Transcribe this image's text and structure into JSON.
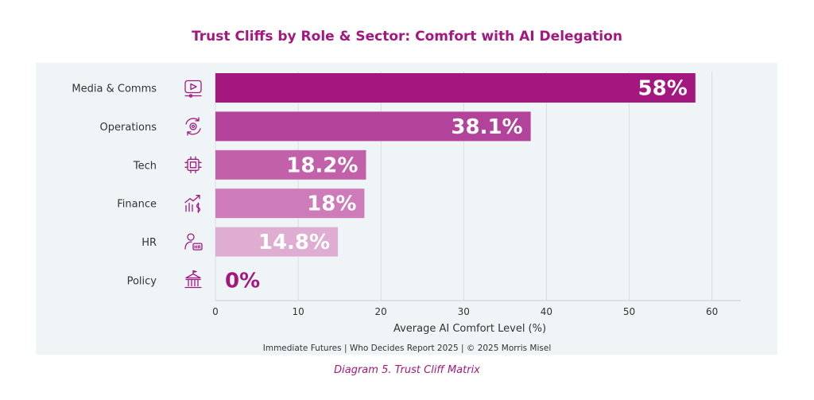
{
  "chart_data": {
    "type": "bar",
    "orientation": "horizontal",
    "title": "Trust Cliffs by Role & Sector: Comfort with AI Delegation",
    "xlabel": "Average AI Comfort Level (%)",
    "ylabel": "",
    "xlim": [
      0,
      63
    ],
    "xticks": [
      0,
      10,
      20,
      30,
      40,
      50,
      60
    ],
    "grid": true,
    "categories": [
      "Media & Comms",
      "Operations",
      "Tech",
      "Finance",
      "HR",
      "Policy"
    ],
    "values": [
      58,
      38.1,
      18.2,
      18,
      14.8,
      0
    ],
    "data_labels": [
      "58%",
      "38.1%",
      "18.2%",
      "18%",
      "14.8%",
      "0%"
    ],
    "icons": [
      "video-icon",
      "cog-refresh-icon",
      "chip-icon",
      "finance-chart-icon",
      "hr-person-icon",
      "government-building-icon"
    ],
    "colors": [
      "#a3177f",
      "#b3439a",
      "#c260aa",
      "#cd7cb9",
      "#dfadd1",
      "#eff4f7"
    ],
    "data_label_colors": [
      "#ffffff",
      "#ffffff",
      "#ffffff",
      "#ffffff",
      "#ffffff",
      "#a3177f"
    ]
  },
  "footer": "Immediate Futures  |  Who Decides Report 2025  | © 2025 Morris Misel",
  "caption": "Diagram 5. Trust Cliff Matrix"
}
